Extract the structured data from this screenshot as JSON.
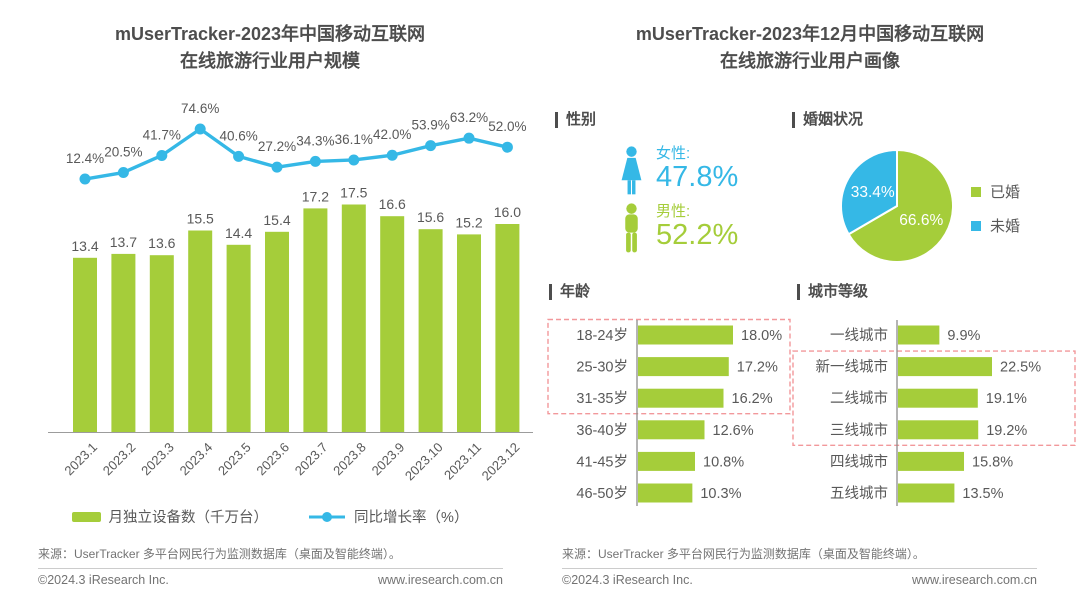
{
  "left": {
    "title_line1": "mUserTracker-2023年中国移动互联网",
    "title_line2": "在线旅游行业用户规模"
  },
  "right": {
    "title_line1": "mUserTracker-2023年12月中国移动互联网",
    "title_line2": "在线旅游行业用户画像",
    "gender": {
      "header": "性别",
      "items": [
        {
          "label": "女性:",
          "value": "47.8%"
        },
        {
          "label": "男性:",
          "value": "52.2%"
        }
      ]
    },
    "marital": {
      "header": "婚姻状况"
    },
    "age": {
      "header": "年龄"
    },
    "city": {
      "header": "城市等级"
    }
  },
  "footer": {
    "source": "来源：UserTracker 多平台网民行为监测数据库（桌面及智能终端）。",
    "copyright": "©2024.3 iResearch Inc.",
    "website": "www.iresearch.com.cn"
  },
  "colors": {
    "green": "#a5cd3a",
    "blue": "#35b8e6",
    "text_dark": "#4d4d4d",
    "text_gray": "#595959",
    "highlight_dash": "#f2989b",
    "axis_gray": "#9c9c9c"
  },
  "chart_data": [
    {
      "type": "bar+line",
      "title": "mUserTracker-2023年中国移动互联网在线旅游行业用户规模",
      "categories": [
        "2023.1",
        "2023.2",
        "2023.3",
        "2023.4",
        "2023.5",
        "2023.6",
        "2023.7",
        "2023.8",
        "2023.9",
        "2023.10",
        "2023.11",
        "2023.12"
      ],
      "series": [
        {
          "name": "月独立设备数（千万台）",
          "type": "bar",
          "color": "#a5cd3a",
          "values": [
            13.4,
            13.7,
            13.6,
            15.5,
            14.4,
            15.4,
            17.2,
            17.5,
            16.6,
            15.6,
            15.2,
            16.0
          ]
        },
        {
          "name": "同比增长率（%）",
          "type": "line",
          "color": "#35b8e6",
          "unit": "%",
          "values": [
            12.4,
            20.5,
            41.7,
            74.6,
            40.6,
            27.2,
            34.3,
            36.1,
            42.0,
            53.9,
            63.2,
            52.0
          ]
        }
      ],
      "ylim_bar": [
        0,
        19
      ],
      "ylim_line": [
        0,
        80
      ],
      "grid": false,
      "legend_position": "bottom"
    },
    {
      "type": "pie",
      "title": "婚姻状况",
      "slices": [
        {
          "label": "已婚",
          "value": 66.6,
          "color": "#a5cd3a"
        },
        {
          "label": "未婚",
          "value": 33.4,
          "color": "#35b8e6"
        }
      ],
      "start_angle_deg": 0,
      "clockwise": true,
      "labels_inside": true,
      "legend_position": "right"
    },
    {
      "type": "bar",
      "orientation": "horizontal",
      "title": "年龄",
      "categories": [
        "18-24岁",
        "25-30岁",
        "31-35岁",
        "36-40岁",
        "41-45岁",
        "46-50岁"
      ],
      "values": [
        18.0,
        17.2,
        16.2,
        12.6,
        10.8,
        10.3
      ],
      "unit": "%",
      "highlight_rows": [
        0,
        1,
        2
      ]
    },
    {
      "type": "bar",
      "orientation": "horizontal",
      "title": "城市等级",
      "categories": [
        "一线城市",
        "新一线城市",
        "二线城市",
        "三线城市",
        "四线城市",
        "五线城市"
      ],
      "values": [
        9.9,
        22.5,
        19.1,
        19.2,
        15.8,
        13.5
      ],
      "unit": "%",
      "highlight_rows": [
        1,
        2,
        3
      ]
    },
    {
      "type": "pictogram",
      "title": "性别",
      "items": [
        {
          "label": "女性",
          "value": 47.8,
          "color": "#35b8e6"
        },
        {
          "label": "男性",
          "value": 52.2,
          "color": "#a5cd3a"
        }
      ],
      "unit": "%"
    }
  ]
}
